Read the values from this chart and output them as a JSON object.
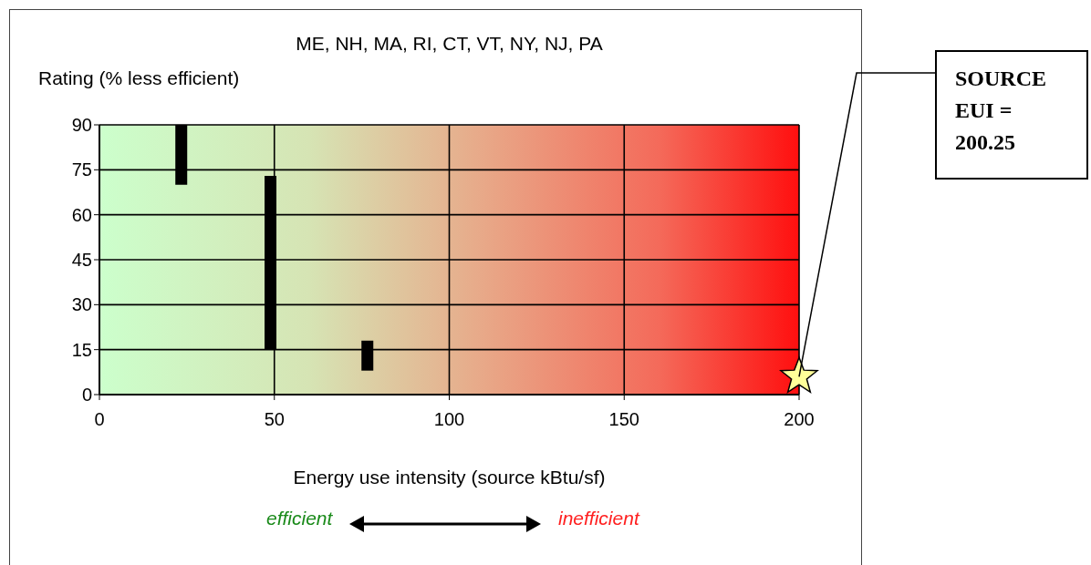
{
  "chart_data": {
    "type": "bar",
    "title": "ME, NH, MA, RI, CT, VT, NY, NJ, PA",
    "ylabel": "Rating (% less efficient)",
    "xlabel": "Energy use intensity (source kBtu/sf)",
    "series": [
      {
        "color": "#000000",
        "x": [
          23.5,
          49,
          76.7
        ],
        "base": [
          70,
          15,
          8
        ],
        "values": [
          20,
          58,
          10
        ]
      },
      {
        "type": "scatter",
        "color": "#ffff99",
        "marker": "star",
        "x": [
          200
        ],
        "values": [
          6
        ]
      }
    ],
    "xlim": [
      0,
      200
    ],
    "xticks": [
      0,
      50,
      100,
      150,
      200
    ],
    "ylim": [
      0,
      90
    ],
    "yticks": [
      0,
      15,
      30,
      45,
      60,
      75,
      90
    ],
    "grid": true,
    "annotations": [
      {
        "text": "SOURCE EUI = 200.25",
        "x": 200,
        "y": 6
      },
      "efficient",
      "inefficient"
    ]
  }
}
